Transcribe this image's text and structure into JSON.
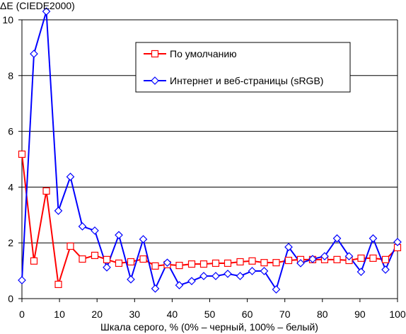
{
  "chart_data": {
    "type": "line",
    "ylabel": "ΔE (CIEDE2000)",
    "xlabel": "Шкала серого, % (0% – черный, 100% – белый)",
    "xlim": [
      0,
      100
    ],
    "ylim": [
      0,
      10
    ],
    "xticks": [
      0,
      10,
      20,
      30,
      40,
      50,
      60,
      70,
      80,
      90,
      100
    ],
    "yticks": [
      0,
      2,
      4,
      6,
      8,
      10
    ],
    "grid": "horizontal",
    "legend_position": "top-right",
    "x": [
      0,
      3.2,
      6.5,
      9.7,
      12.9,
      16.1,
      19.4,
      22.6,
      25.8,
      29.0,
      32.3,
      35.5,
      38.7,
      41.9,
      45.2,
      48.4,
      51.6,
      54.8,
      58.1,
      61.3,
      64.5,
      67.7,
      71.0,
      74.2,
      77.4,
      80.6,
      83.9,
      87.1,
      90.3,
      93.5,
      96.8,
      100
    ],
    "series": [
      {
        "name": "По умолчанию",
        "color": "#ff0000",
        "marker": "square",
        "values": [
          5.18,
          1.35,
          3.86,
          0.51,
          1.88,
          1.42,
          1.55,
          1.4,
          1.27,
          1.32,
          1.42,
          1.17,
          1.22,
          1.19,
          1.24,
          1.24,
          1.27,
          1.27,
          1.32,
          1.35,
          1.29,
          1.29,
          1.37,
          1.4,
          1.4,
          1.4,
          1.4,
          1.37,
          1.45,
          1.45,
          1.4,
          1.83
        ]
      },
      {
        "name": "Интернет и веб-страницы (sRGB)",
        "color": "#0000ff",
        "marker": "diamond",
        "values": [
          0.66,
          8.78,
          10.3,
          3.15,
          4.37,
          2.59,
          2.44,
          1.12,
          2.28,
          0.69,
          2.13,
          0.36,
          1.29,
          0.48,
          0.63,
          0.81,
          0.81,
          0.89,
          0.81,
          0.99,
          0.99,
          0.33,
          1.85,
          1.27,
          1.42,
          1.52,
          2.16,
          1.52,
          0.96,
          2.16,
          1.04,
          2.03
        ]
      }
    ]
  }
}
